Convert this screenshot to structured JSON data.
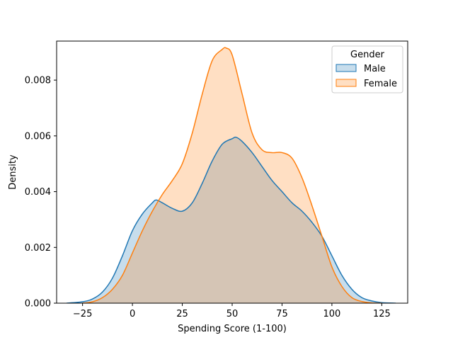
{
  "chart_data": {
    "type": "area",
    "xlabel": "Spending Score (1-100)",
    "ylabel": "Density",
    "xlim": [
      -38,
      138
    ],
    "ylim": [
      0,
      0.0094
    ],
    "xticks": [
      -25,
      0,
      25,
      50,
      75,
      100,
      125
    ],
    "yticks": [
      0.0,
      0.002,
      0.004,
      0.006,
      0.008
    ],
    "ytick_labels": [
      "0.000",
      "0.002",
      "0.004",
      "0.006",
      "0.008"
    ],
    "grid": false,
    "legend": {
      "title": "Gender",
      "position": "top-right"
    },
    "series": [
      {
        "name": "Male",
        "color": "#1f77b4",
        "x": [
          -33,
          -25,
          -20,
          -15,
          -10,
          -5,
          0,
          5,
          10,
          12,
          15,
          20,
          25,
          30,
          35,
          40,
          45,
          50,
          52,
          55,
          60,
          65,
          70,
          75,
          80,
          85,
          90,
          95,
          100,
          105,
          110,
          115,
          120,
          125,
          132
        ],
        "values": [
          0.0,
          5e-05,
          0.00015,
          0.0004,
          0.0009,
          0.0017,
          0.0026,
          0.0032,
          0.0036,
          0.0037,
          0.0036,
          0.0034,
          0.0033,
          0.0036,
          0.0043,
          0.0051,
          0.0057,
          0.0059,
          0.00595,
          0.0058,
          0.0054,
          0.0049,
          0.0044,
          0.004,
          0.0036,
          0.0033,
          0.0029,
          0.0024,
          0.0017,
          0.001,
          0.0005,
          0.0002,
          8e-05,
          2e-05,
          0.0
        ]
      },
      {
        "name": "Female",
        "color": "#ff7f0e",
        "x": [
          -25,
          -20,
          -15,
          -10,
          -5,
          0,
          5,
          10,
          15,
          20,
          25,
          30,
          35,
          40,
          45,
          47,
          50,
          55,
          60,
          65,
          70,
          75,
          80,
          85,
          90,
          95,
          100,
          105,
          110,
          115,
          120,
          125
        ],
        "values": [
          0.0,
          5e-05,
          0.0002,
          0.0005,
          0.001,
          0.0018,
          0.0026,
          0.0033,
          0.0039,
          0.0044,
          0.005,
          0.0061,
          0.0075,
          0.0087,
          0.0091,
          0.00915,
          0.0089,
          0.0075,
          0.0061,
          0.0055,
          0.0054,
          0.0054,
          0.0052,
          0.0045,
          0.0035,
          0.0024,
          0.0013,
          0.0006,
          0.0002,
          6e-05,
          1e-05,
          0.0
        ]
      }
    ]
  }
}
